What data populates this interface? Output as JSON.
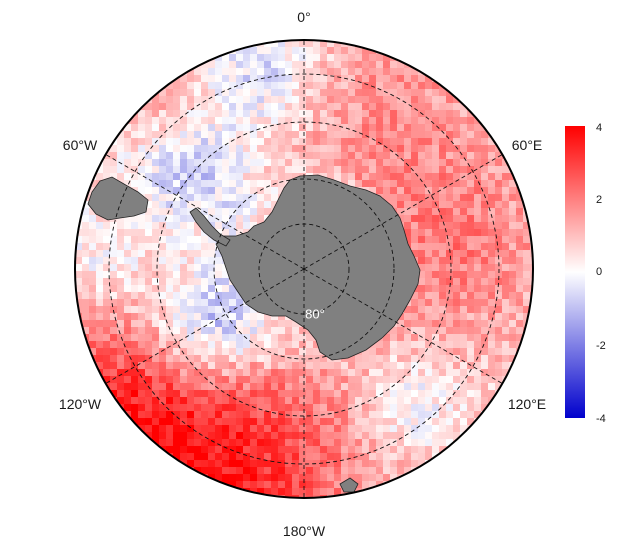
{
  "map": {
    "projection": "south-polar-stereographic",
    "lon_labels": {
      "lon_0": "0°",
      "lon_60e": "60°E",
      "lon_120e": "120°E",
      "lon_180": "180°W",
      "lon_120w": "120°W",
      "lon_60w": "60°W"
    },
    "lat_label": "80°",
    "land_color": "#808080",
    "graticule_style": "dashed"
  },
  "colorbar": {
    "ticks": [
      "4",
      "2",
      "0",
      "-2",
      "-4"
    ],
    "min": -4,
    "max": 4,
    "colors": {
      "high": "#ff0000",
      "mid": "#ffffff",
      "low": "#0000cc"
    }
  }
}
